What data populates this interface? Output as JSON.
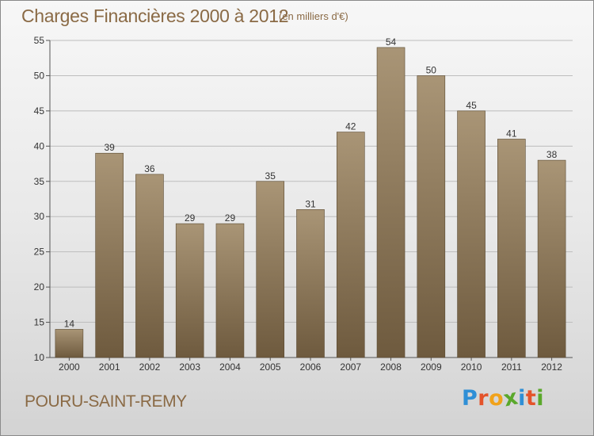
{
  "header": {
    "title": "Charges Financières 2000 à 2012",
    "subtitle": "(en milliers d'€)"
  },
  "footer": {
    "place": "POURU-SAINT-REMY",
    "logo": "Proxiti",
    "logo_letters": [
      {
        "ch": "P",
        "color": "#2f8fd6"
      },
      {
        "ch": "r",
        "color": "#e4532a"
      },
      {
        "ch": "o",
        "color": "#f1a21a"
      },
      {
        "ch": "x",
        "color": "#5aa82b"
      },
      {
        "ch": "i",
        "color": "#2f8fd6"
      },
      {
        "ch": "t",
        "color": "#e4532a"
      },
      {
        "ch": "i",
        "color": "#5aa82b"
      }
    ]
  },
  "colors": {
    "bar_top": "#a99576",
    "bar_bottom": "#6e5a3e",
    "grid": "#bdbdbd",
    "text_brown": "#8a6a45"
  },
  "chart_data": {
    "type": "bar",
    "title": "Charges Financières 2000 à 2012",
    "subtitle": "(en milliers d'€)",
    "categories": [
      "2000",
      "2001",
      "2002",
      "2003",
      "2004",
      "2005",
      "2006",
      "2007",
      "2008",
      "2009",
      "2010",
      "2011",
      "2012"
    ],
    "values": [
      14,
      39,
      36,
      29,
      29,
      35,
      31,
      42,
      54,
      50,
      45,
      41,
      38
    ],
    "ylim": [
      10,
      55
    ],
    "yticks": [
      10,
      15,
      20,
      25,
      30,
      35,
      40,
      45,
      50,
      55
    ],
    "grid": true,
    "xlabel": "",
    "ylabel": ""
  }
}
